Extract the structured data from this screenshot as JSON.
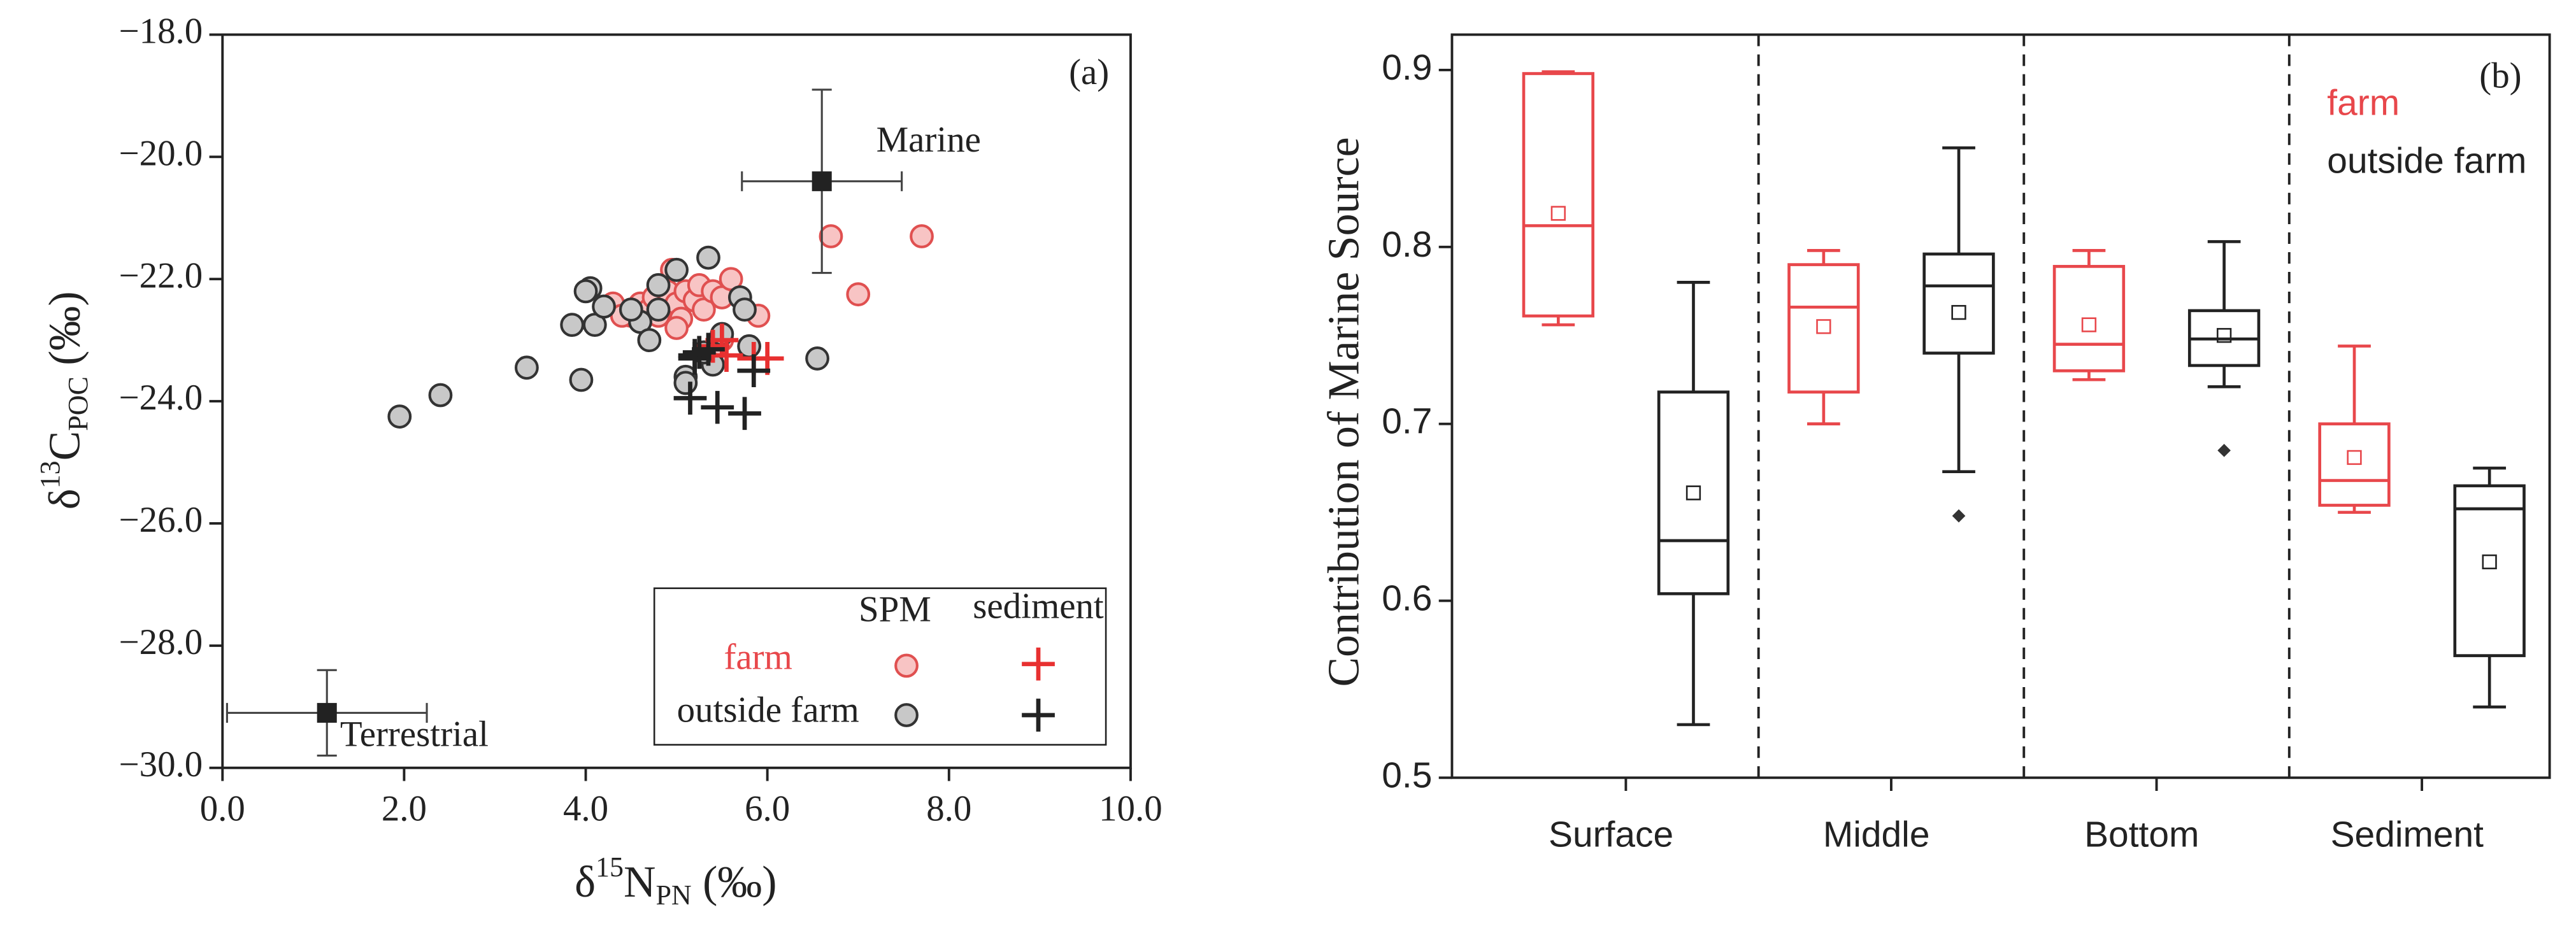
{
  "chart_data": [
    {
      "type": "scatter",
      "x_label": [
        "δ",
        "15",
        "N",
        "PN",
        " (‰)"
      ],
      "y_label": [
        "δ",
        "13",
        "C",
        "POC",
        " (‰)"
      ],
      "panel_label": "(a)",
      "xlim": [
        0,
        10
      ],
      "xticks": [
        {
          "value": 0,
          "label": "0.0"
        },
        {
          "value": 2,
          "label": "2.0"
        },
        {
          "value": 4,
          "label": "4.0"
        },
        {
          "value": 6,
          "label": "6.0"
        },
        {
          "value": 8,
          "label": "8.0"
        },
        {
          "value": 10,
          "label": "10.0"
        }
      ],
      "ylim": [
        -30,
        -18
      ],
      "yticks": [
        {
          "value": -30,
          "label": "−30.0"
        },
        {
          "value": -28,
          "label": "−28.0"
        },
        {
          "value": -26,
          "label": "−26.0"
        },
        {
          "value": -24,
          "label": "−24.0"
        },
        {
          "value": -22,
          "label": "−22.0"
        },
        {
          "value": -20,
          "label": "−20.0"
        },
        {
          "value": -18,
          "label": "−18.0"
        }
      ],
      "legend": {
        "columns": [
          "SPM",
          "sediment"
        ],
        "rows": [
          "farm",
          "outside farm"
        ]
      },
      "series": [
        {
          "marker": "circle",
          "color": "#e05050",
          "fill": "#f8c4c4",
          "x": [
            4.3,
            4.5,
            4.6,
            4.7,
            4.75,
            4.8,
            4.9,
            4.95,
            5.0,
            5.05,
            5.1,
            5.2,
            5.25,
            5.3,
            5.4,
            5.5,
            5.6,
            5.5,
            5.4,
            5.9,
            6.7,
            7.7,
            7.0,
            4.4,
            5.0
          ],
          "y": [
            -22.4,
            -22.6,
            -22.4,
            -22.5,
            -22.3,
            -22.6,
            -22.2,
            -21.85,
            -22.4,
            -22.65,
            -22.2,
            -22.35,
            -22.1,
            -22.5,
            -22.2,
            -22.3,
            -22.0,
            -23.0,
            -23.2,
            -22.6,
            -21.3,
            -21.3,
            -22.25,
            -22.6,
            -22.8
          ]
        },
        {
          "marker": "circle",
          "color": "#333333",
          "fill": "#c8c8c8",
          "x": [
            1.95,
            2.4,
            3.35,
            3.95,
            3.85,
            4.05,
            4.1,
            4.2,
            4.0,
            4.6,
            4.7,
            4.8,
            4.8,
            5.0,
            5.1,
            5.1,
            5.35,
            5.4,
            5.5,
            5.7,
            5.75,
            5.8,
            6.55,
            5.3,
            4.5
          ],
          "y": [
            -24.25,
            -23.9,
            -23.45,
            -23.65,
            -22.75,
            -22.15,
            -22.75,
            -22.45,
            -22.2,
            -22.7,
            -23.0,
            -22.5,
            -22.1,
            -21.85,
            -23.6,
            -23.7,
            -21.65,
            -23.4,
            -22.9,
            -22.3,
            -22.5,
            -23.1,
            -23.3,
            -23.2,
            -22.5
          ]
        },
        {
          "marker": "plus",
          "color": "#e83030",
          "x": [
            5.4,
            5.5,
            5.55,
            5.85,
            6.0
          ],
          "y": [
            -23.1,
            -23.0,
            -23.25,
            -23.3,
            -23.3
          ]
        },
        {
          "marker": "plus",
          "color": "#222222",
          "x": [
            5.15,
            5.2,
            5.25,
            5.35,
            5.45,
            5.75,
            5.85,
            5.2
          ],
          "y": [
            -23.95,
            -23.25,
            -23.2,
            -23.15,
            -24.1,
            -24.2,
            -23.5,
            -23.3
          ]
        }
      ],
      "end_members": [
        {
          "label": "Marine",
          "x": 6.6,
          "y": -20.4,
          "xerr": 0.88,
          "yerr": 1.5
        },
        {
          "label": "Terrestrial",
          "x": 1.15,
          "y": -29.1,
          "xerr": 1.1,
          "yerr": 0.7
        }
      ]
    },
    {
      "type": "box",
      "y_label": "Contribution of Marine Source",
      "panel_label": "(b)",
      "categories": [
        "Surface",
        "Middle",
        "Bottom",
        "Sediment"
      ],
      "ylim": [
        0.5,
        0.92
      ],
      "yticks": [
        0.5,
        0.6,
        0.7,
        0.8,
        0.9
      ],
      "series": [
        {
          "name": "farm",
          "color": "#e8474b",
          "low": [
            0.756,
            0.7,
            0.725,
            0.65
          ],
          "q1": [
            0.761,
            0.718,
            0.73,
            0.654
          ],
          "median": [
            0.812,
            0.766,
            0.745,
            0.668
          ],
          "q3": [
            0.898,
            0.79,
            0.789,
            0.7
          ],
          "high": [
            0.899,
            0.798,
            0.798,
            0.744
          ],
          "mean": [
            0.819,
            0.755,
            0.756,
            0.681
          ],
          "outliers": [
            [],
            [],
            [],
            []
          ]
        },
        {
          "name": "outside farm",
          "color": "#222222",
          "low": [
            0.53,
            0.673,
            0.721,
            0.54
          ],
          "q1": [
            0.604,
            0.74,
            0.733,
            0.569
          ],
          "median": [
            0.634,
            0.778,
            0.748,
            0.652
          ],
          "q3": [
            0.718,
            0.796,
            0.764,
            0.665
          ],
          "high": [
            0.78,
            0.856,
            0.803,
            0.675
          ],
          "mean": [
            0.661,
            0.763,
            0.75,
            0.622
          ],
          "outliers": [
            [],
            [
              0.648
            ],
            [
              0.685
            ],
            []
          ]
        }
      ]
    }
  ]
}
